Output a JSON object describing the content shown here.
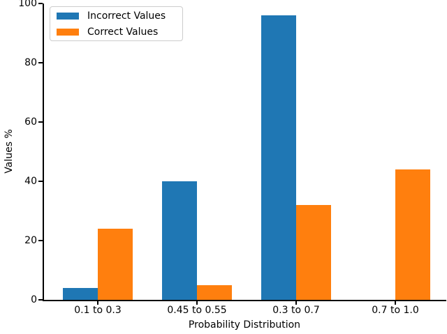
{
  "chart_data": {
    "type": "bar",
    "categories": [
      "0.1 to 0.3",
      "0.45 to 0.55",
      "0.3 to 0.7",
      "0.7 to 1.0"
    ],
    "series": [
      {
        "name": "Incorrect Values",
        "color": "#1f77b4",
        "values": [
          4,
          40,
          96,
          0
        ]
      },
      {
        "name": "Correct Values",
        "color": "#ff7f0e",
        "values": [
          24,
          5,
          32,
          44
        ]
      }
    ],
    "title": "",
    "xlabel": "Probability Distribution",
    "ylabel": "Values %",
    "ylim": [
      0,
      100
    ],
    "yticks": [
      0,
      20,
      40,
      60,
      80,
      100
    ],
    "grid": false,
    "legend_position": "upper left",
    "axis_color": "#000000",
    "background_color": "#ffffff"
  }
}
